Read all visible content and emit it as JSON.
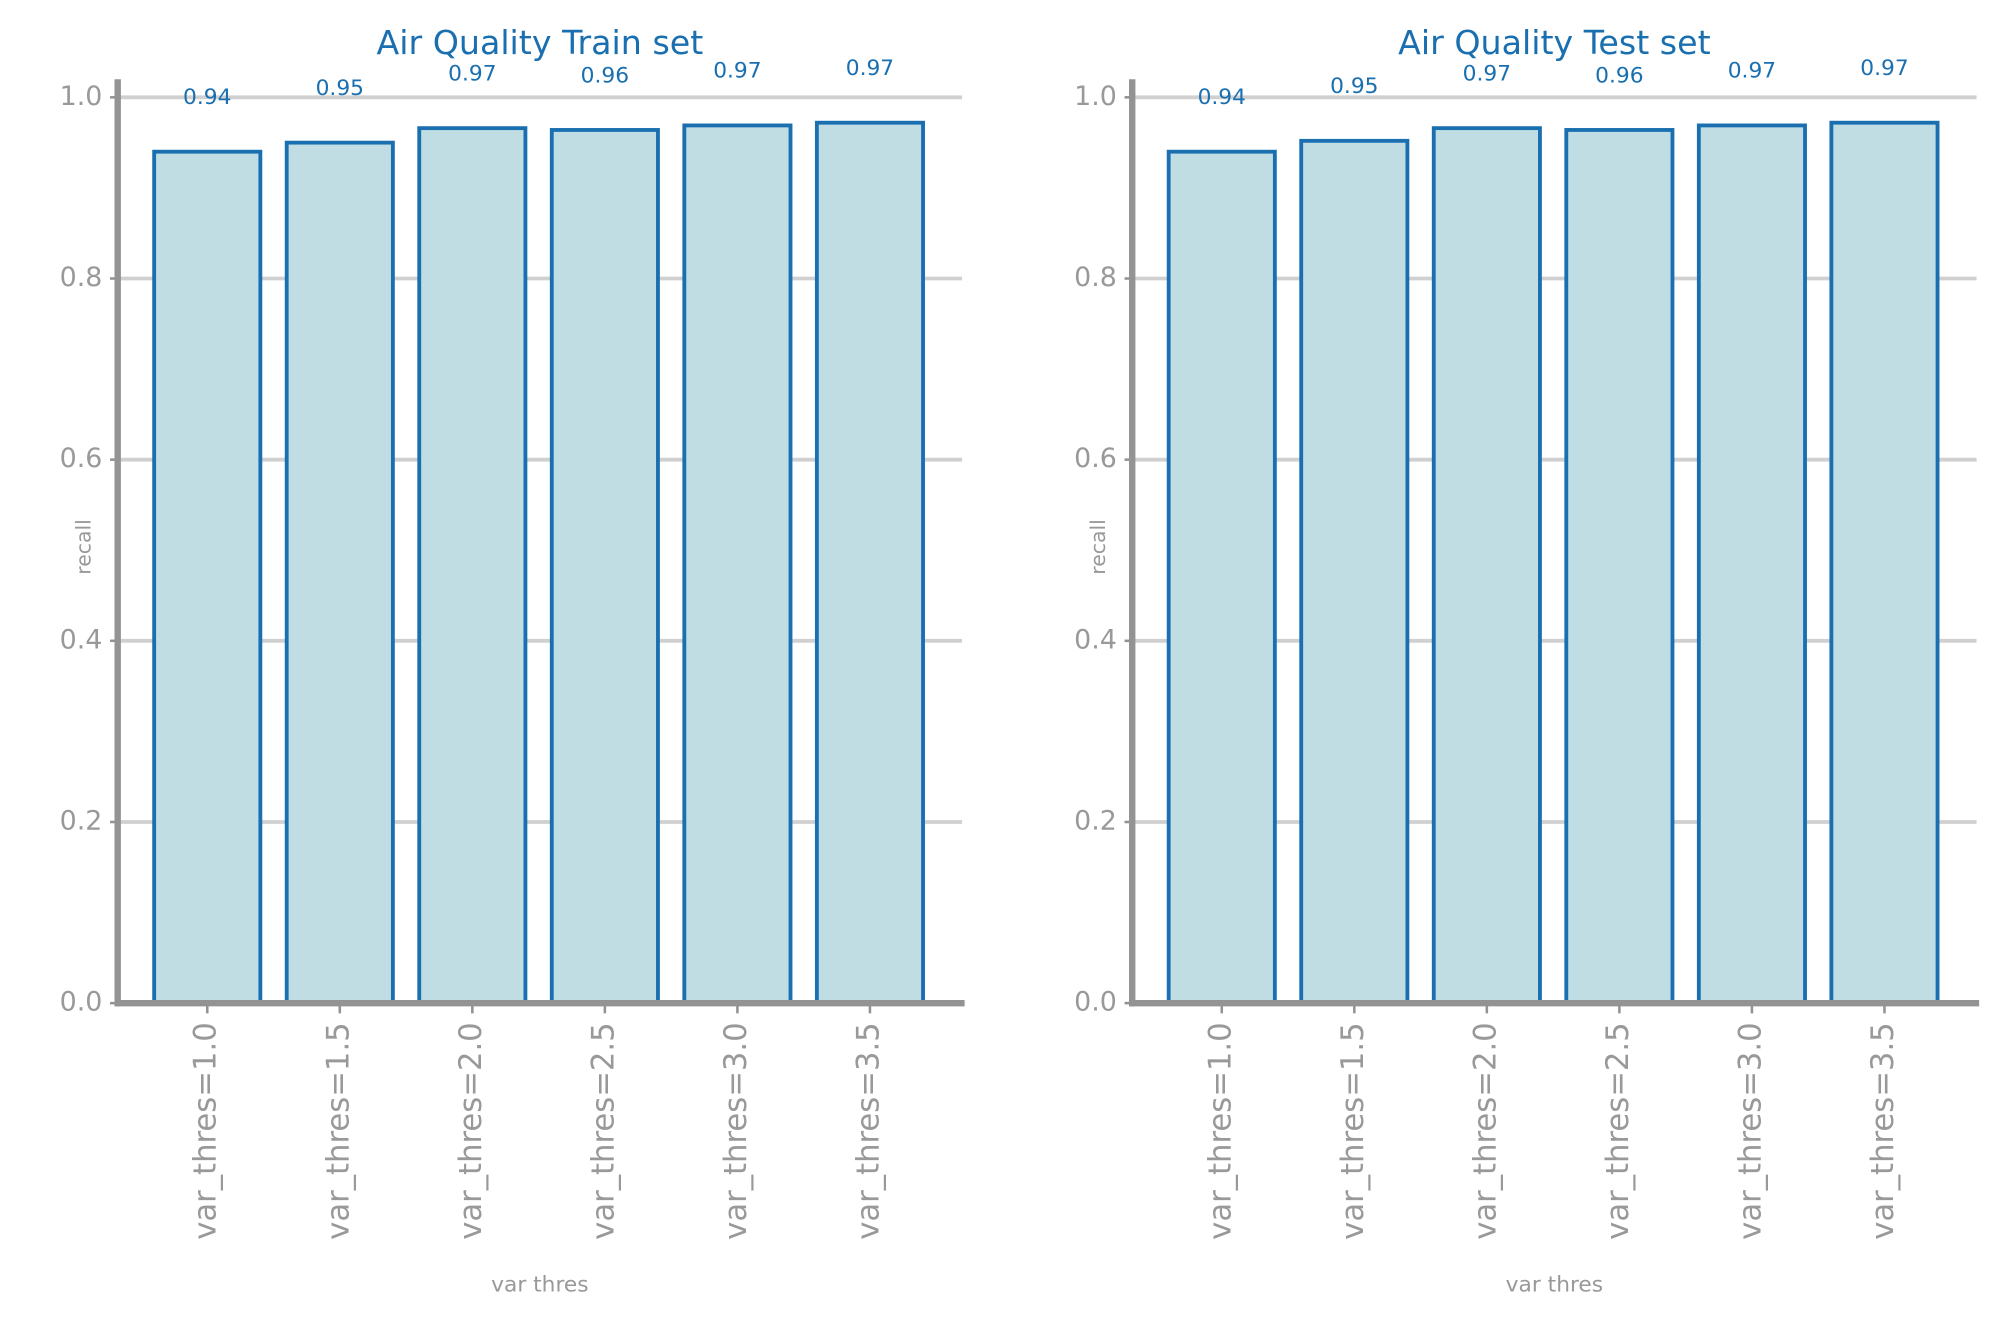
{
  "chart_data": [
    {
      "type": "bar",
      "title": "Air Quality Train set",
      "xlabel": "var thres",
      "ylabel": "recall",
      "categories": [
        "var_thres=1.0",
        "var_thres=1.5",
        "var_thres=2.0",
        "var_thres=2.5",
        "var_thres=3.0",
        "var_thres=3.5"
      ],
      "values": [
        0.94,
        0.95,
        0.966,
        0.964,
        0.969,
        0.972
      ],
      "value_labels": [
        "0.94",
        "0.95",
        "0.97",
        "0.96",
        "0.97",
        "0.97"
      ],
      "color": "#bfdde2",
      "edge_color": "#1a6fb0",
      "ylim": [
        0,
        1.02
      ],
      "yticks": [
        {
          "value": 0,
          "label": "0.0"
        },
        0.2,
        0.4,
        0.6,
        0.8,
        {
          "value": 1,
          "label": "1.0"
        }
      ],
      "grid": true
    },
    {
      "type": "bar",
      "title": "Air Quality Test set",
      "xlabel": "var thres",
      "ylabel": "recall",
      "categories": [
        "var_thres=1.0",
        "var_thres=1.5",
        "var_thres=2.0",
        "var_thres=2.5",
        "var_thres=3.0",
        "var_thres=3.5"
      ],
      "values": [
        0.94,
        0.952,
        0.966,
        0.964,
        0.969,
        0.972
      ],
      "value_labels": [
        "0.94",
        "0.95",
        "0.97",
        "0.96",
        "0.97",
        "0.97"
      ],
      "color": "#bfdde2",
      "edge_color": "#1a6fb0",
      "ylim": [
        0,
        1.02
      ],
      "yticks": [
        {
          "value": 0,
          "label": "0.0"
        },
        0.2,
        0.4,
        0.6,
        0.8,
        {
          "value": 1,
          "label": "1.0"
        }
      ],
      "grid": true
    }
  ]
}
